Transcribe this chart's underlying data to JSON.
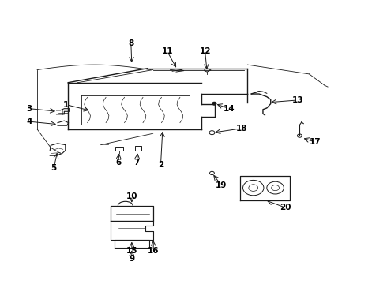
{
  "bg_color": "#ffffff",
  "line_color": "#1a1a1a",
  "label_color": "#000000",
  "fig_width": 4.9,
  "fig_height": 3.6,
  "dpi": 100,
  "labels": {
    "1": [
      0.285,
      0.595,
      0.215,
      0.62
    ],
    "2": [
      0.415,
      0.43,
      0.415,
      0.375
    ],
    "3": [
      0.115,
      0.595,
      0.075,
      0.61
    ],
    "4": [
      0.115,
      0.555,
      0.075,
      0.565
    ],
    "5": [
      0.14,
      0.43,
      0.14,
      0.38
    ],
    "6": [
      0.305,
      0.455,
      0.305,
      0.415
    ],
    "7": [
      0.355,
      0.455,
      0.355,
      0.415
    ],
    "8": [
      0.34,
      0.79,
      0.34,
      0.84
    ],
    "9": [
      0.34,
      0.145,
      0.34,
      0.105
    ],
    "10": [
      0.34,
      0.72,
      0.34,
      0.77
    ],
    "11": [
      0.44,
      0.82,
      0.42,
      0.855
    ],
    "12": [
      0.53,
      0.82,
      0.53,
      0.86
    ],
    "13": [
      0.68,
      0.64,
      0.76,
      0.64
    ],
    "14": [
      0.565,
      0.58,
      0.59,
      0.6
    ],
    "15": [
      0.355,
      0.175,
      0.355,
      0.13
    ],
    "16": [
      0.395,
      0.18,
      0.395,
      0.13
    ],
    "17": [
      0.785,
      0.48,
      0.81,
      0.46
    ],
    "18": [
      0.565,
      0.53,
      0.62,
      0.545
    ],
    "19": [
      0.555,
      0.38,
      0.57,
      0.335
    ],
    "20": [
      0.73,
      0.33,
      0.775,
      0.29
    ]
  }
}
